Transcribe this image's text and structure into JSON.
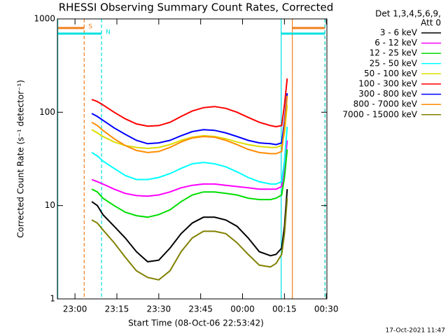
{
  "chart_data": {
    "type": "line",
    "title": "RHESSI Observing Summary Count Rates, Corrected",
    "xlabel": "Start Time (08-Oct-06 22:53:42)",
    "ylabel": "Corrected Count Rate (s⁻¹ detector⁻¹)",
    "legend_title": [
      "Det 1,3,4,5,6,9,",
      "Att 0"
    ],
    "timestamp": "17-Oct-2021 11:47",
    "log_y": true,
    "xlim": [
      -6.3,
      90.2
    ],
    "ylim": [
      1,
      1000
    ],
    "xticks": [
      {
        "value": 0,
        "label": "23:00"
      },
      {
        "value": 15,
        "label": "23:15"
      },
      {
        "value": 30,
        "label": "23:30"
      },
      {
        "value": 45,
        "label": "23:45"
      },
      {
        "value": 60,
        "label": "00:00"
      },
      {
        "value": 75,
        "label": "00:15"
      },
      {
        "value": 90,
        "label": "00:30"
      }
    ],
    "yticks": [
      1,
      10,
      100,
      1000
    ],
    "flags": [
      {
        "label": "S",
        "color": "#f08020",
        "intervals": [
          [
            -6.3,
            3.3
          ],
          [
            77.7,
            89.5
          ]
        ]
      },
      {
        "label": "N",
        "color": "#00e0e0",
        "intervals": [
          [
            -6.3,
            9.5
          ],
          [
            73.7,
            89.5
          ]
        ]
      }
    ],
    "x": [
      6,
      8,
      10,
      14,
      18,
      22,
      26,
      30,
      34,
      38,
      42,
      46,
      50,
      54,
      58,
      62,
      66,
      70,
      72,
      74,
      75,
      76
    ],
    "series": [
      {
        "name": "3 - 6 keV",
        "color": "#000000",
        "values": [
          11,
          10,
          8,
          6,
          4.5,
          3.2,
          2.5,
          2.6,
          3.5,
          5,
          6.5,
          7.5,
          7.5,
          7,
          6,
          4.5,
          3.2,
          2.9,
          3,
          3.5,
          6,
          15
        ]
      },
      {
        "name": "6 - 12 keV",
        "color": "#ff00ff",
        "values": [
          19,
          18,
          17,
          15,
          13.5,
          12.8,
          12.6,
          13,
          14,
          15.5,
          16.5,
          17,
          17,
          16.5,
          16,
          15.5,
          15,
          15,
          15,
          16,
          25,
          50
        ]
      },
      {
        "name": "12 - 25 keV",
        "color": "#00dd00",
        "values": [
          15,
          14,
          12,
          10,
          8.5,
          7.8,
          7.5,
          8,
          9,
          11,
          13,
          14,
          14,
          13.5,
          13,
          12,
          11.6,
          11.6,
          12,
          13,
          20,
          40
        ]
      },
      {
        "name": "25 - 50 keV",
        "color": "#00ffff",
        "values": [
          37,
          34,
          30,
          25,
          21,
          19,
          19,
          20,
          22,
          25,
          28,
          29,
          28,
          26,
          23,
          20,
          18,
          17,
          17,
          18,
          30,
          70
        ]
      },
      {
        "name": "50 - 100 keV",
        "color": "#dddd00",
        "values": [
          65,
          60,
          55,
          48,
          44,
          42,
          41,
          42,
          45,
          50,
          54,
          56,
          55,
          52,
          48,
          45,
          43,
          42,
          42,
          44,
          60,
          120
        ]
      },
      {
        "name": "100 - 300 keV",
        "color": "#ff0000",
        "values": [
          137,
          130,
          120,
          100,
          85,
          75,
          71,
          72,
          78,
          90,
          103,
          112,
          115,
          110,
          100,
          88,
          78,
          72,
          70,
          72,
          120,
          230
        ]
      },
      {
        "name": "300 - 800 keV",
        "color": "#0000ff",
        "values": [
          97,
          90,
          82,
          68,
          58,
          50,
          46,
          47,
          50,
          56,
          62,
          65,
          64,
          60,
          55,
          50,
          47,
          46,
          45,
          47,
          80,
          160
        ]
      },
      {
        "name": "800 - 7000 keV",
        "color": "#ff8c00",
        "values": [
          78,
          72,
          64,
          52,
          44,
          39,
          37,
          38,
          42,
          48,
          53,
          55,
          54,
          50,
          45,
          40,
          37,
          36,
          36,
          38,
          70,
          150
        ]
      },
      {
        "name": "7000 - 15000 keV",
        "color": "#808000",
        "values": [
          7,
          6.5,
          5.5,
          4,
          2.8,
          2,
          1.7,
          1.6,
          2,
          3.2,
          4.5,
          5.3,
          5.3,
          5,
          4,
          3,
          2.3,
          2.2,
          2.4,
          3,
          5,
          12
        ]
      }
    ]
  }
}
